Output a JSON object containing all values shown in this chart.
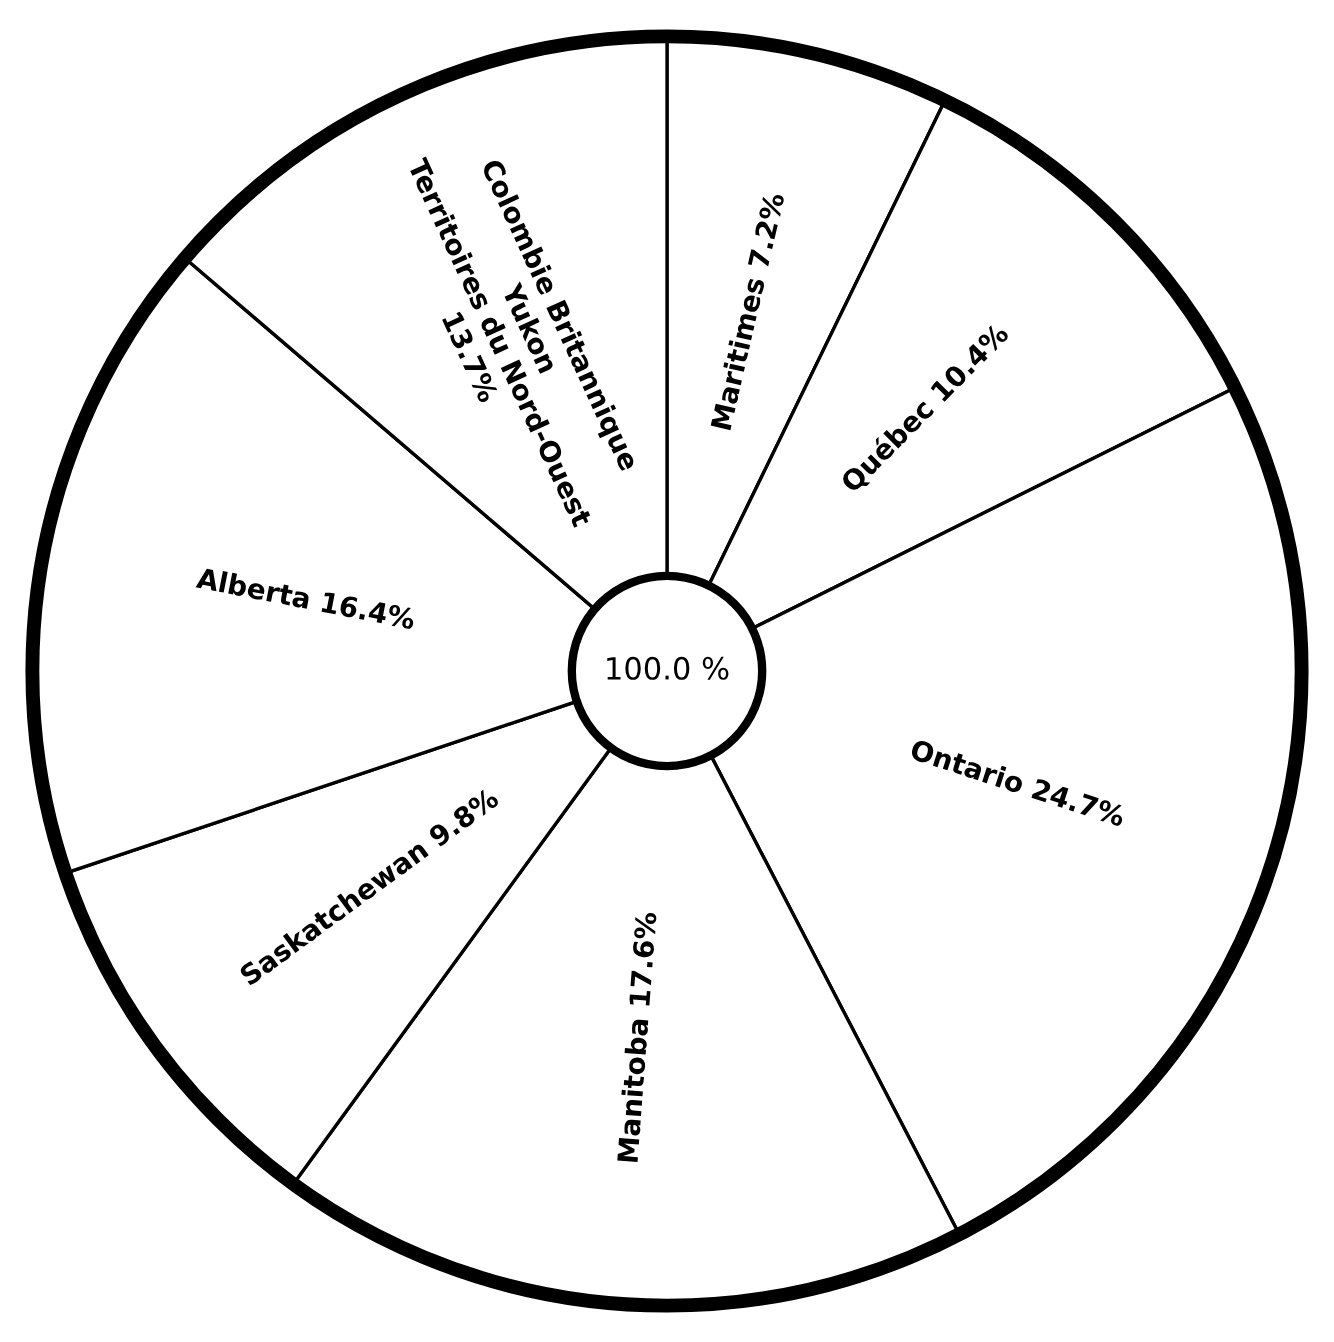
{
  "chart_data": {
    "type": "donut",
    "categories": [
      "Maritimes",
      "Québec",
      "Ontario",
      "Manitoba",
      "Saskatchewan",
      "Alberta",
      "Colombie Britannique\nYukon\nTerritoires du Nord-Ouest"
    ],
    "values": [
      7.2,
      10.4,
      24.7,
      17.6,
      9.8,
      16.4,
      13.7
    ],
    "value_labels": [
      "7.2%",
      "10.4%",
      "24.7%",
      "17.6%",
      "9.8%",
      "16.4%",
      "13.7%"
    ],
    "colors": [
      "#ffffff",
      "#ffffff",
      "#ffffff",
      "#ffffff",
      "#ffffff",
      "#ffffff",
      "#ffffff"
    ],
    "annotations": [
      "100.0 %"
    ]
  }
}
